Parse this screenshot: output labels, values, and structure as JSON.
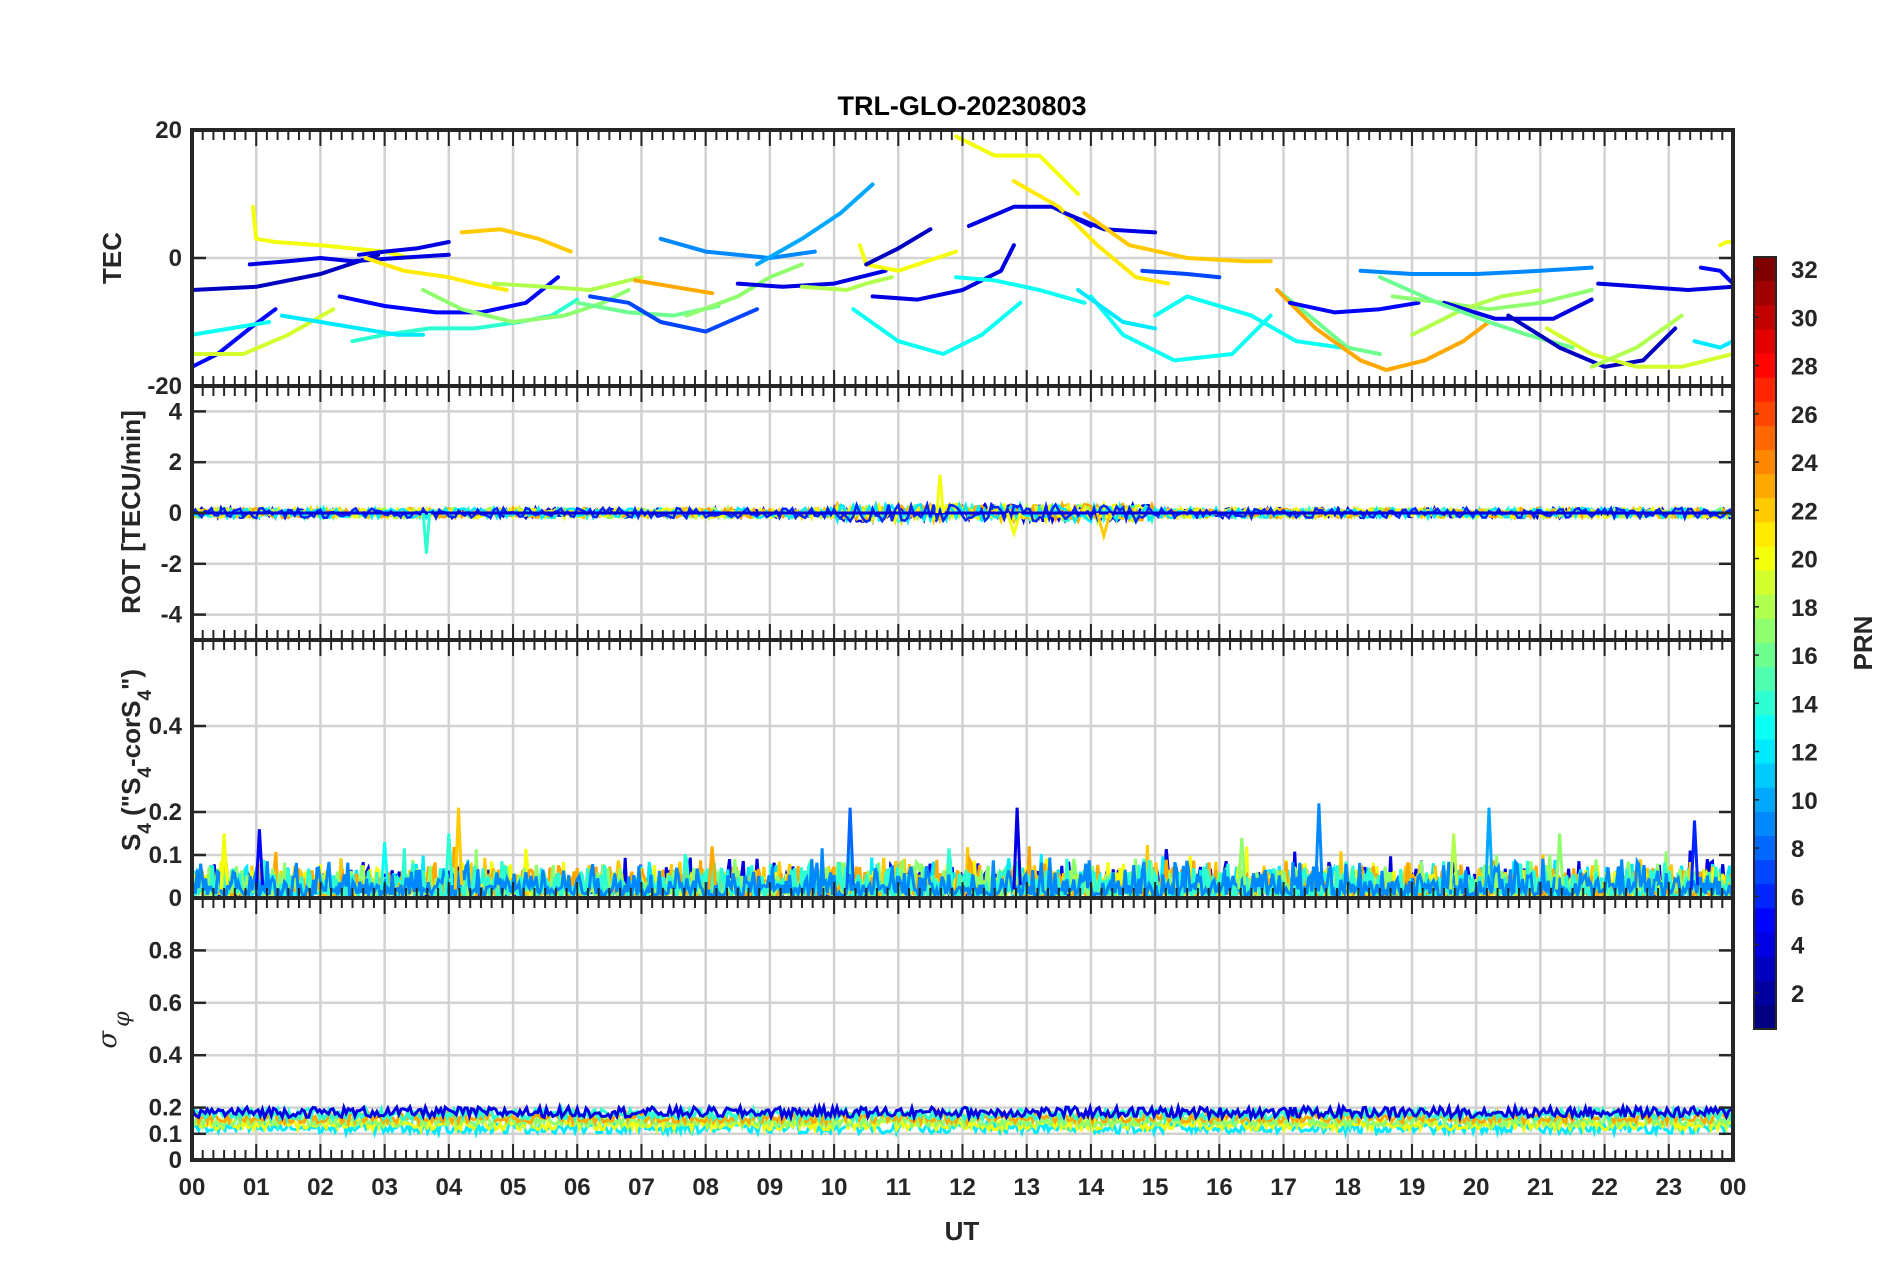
{
  "figure": {
    "title": "TRL-GLO-20230803",
    "xlabel": "UT"
  },
  "chart_data": [
    {
      "type": "line",
      "panel": "tec",
      "ylabel": "TEC",
      "ylim": [
        -20,
        20
      ],
      "yticks": [
        20,
        0,
        -20
      ],
      "xlim": [
        0,
        24
      ],
      "grid": true,
      "color_by": "PRN",
      "series": [
        {
          "prn": 5,
          "x": [
            0,
            0.4,
            0.9,
            1.3
          ],
          "y": [
            -17,
            -15,
            -11,
            -8
          ]
        },
        {
          "prn": 3,
          "x": [
            0,
            1,
            2,
            2.9
          ],
          "y": [
            -5,
            -4.5,
            -2.5,
            0.5
          ]
        },
        {
          "prn": 13,
          "x": [
            0,
            0.6,
            1.2
          ],
          "y": [
            -12,
            -11,
            -10
          ]
        },
        {
          "prn": 19,
          "x": [
            0,
            0.8,
            1.5,
            2.2
          ],
          "y": [
            -15,
            -15,
            -12,
            -8
          ]
        },
        {
          "prn": 20,
          "x": [
            0.95,
            1.0,
            1.3,
            2,
            3,
            3.4
          ],
          "y": [
            8,
            3,
            2.5,
            2,
            1,
            0
          ]
        },
        {
          "prn": 4,
          "x": [
            0.9,
            1.5,
            2,
            2.5,
            3.2,
            4
          ],
          "y": [
            -1,
            -0.5,
            0,
            -0.5,
            0,
            0.5
          ]
        },
        {
          "prn": 4,
          "x": [
            2.6,
            3,
            3.5,
            4
          ],
          "y": [
            0.5,
            1,
            1.5,
            2.5
          ]
        },
        {
          "prn": 5,
          "x": [
            2.3,
            3,
            3.8,
            4.5,
            5.2,
            5.7
          ],
          "y": [
            -6,
            -7.5,
            -8.5,
            -8.5,
            -7,
            -3
          ]
        },
        {
          "prn": 21,
          "x": [
            2.7,
            3.3,
            4,
            4.4,
            4.9
          ],
          "y": [
            0,
            -2,
            -3,
            -4,
            -5
          ]
        },
        {
          "prn": 22,
          "x": [
            4.2,
            4.8,
            5.4,
            5.9
          ],
          "y": [
            4,
            4.5,
            3,
            1
          ]
        },
        {
          "prn": 14,
          "x": [
            2.5,
            3,
            3.7,
            4.4,
            5.1,
            5.6,
            6
          ],
          "y": [
            -13,
            -12,
            -11,
            -11,
            -10,
            -9,
            -6.5
          ]
        },
        {
          "prn": 12,
          "x": [
            1.4,
            2,
            2.6,
            3.2,
            3.6
          ],
          "y": [
            -9,
            -10,
            -11,
            -12,
            -12
          ]
        },
        {
          "prn": 17,
          "x": [
            3.6,
            4.2,
            5,
            5.8,
            6.4,
            6.8
          ],
          "y": [
            -5,
            -8,
            -10,
            -9,
            -7,
            -5
          ]
        },
        {
          "prn": 18,
          "x": [
            4.7,
            5.5,
            6.2,
            7
          ],
          "y": [
            -4,
            -4.5,
            -5,
            -3
          ]
        },
        {
          "prn": 16,
          "x": [
            6,
            6.8,
            7.5,
            8.2
          ],
          "y": [
            -7,
            -8.5,
            -9,
            -7.5
          ]
        },
        {
          "prn": 7,
          "x": [
            6.2,
            6.8,
            7.3,
            8,
            8.8
          ],
          "y": [
            -6,
            -7,
            -10,
            -11.5,
            -8
          ]
        },
        {
          "prn": 23,
          "x": [
            6.9,
            7.5,
            8.1
          ],
          "y": [
            -3.5,
            -4.5,
            -5.5
          ]
        },
        {
          "prn": 9,
          "x": [
            7.3,
            8,
            9,
            9.7
          ],
          "y": [
            3,
            1,
            0,
            1
          ]
        },
        {
          "prn": 17,
          "x": [
            7.7,
            8.5,
            9,
            9.5
          ],
          "y": [
            -9,
            -6,
            -3,
            -1
          ]
        },
        {
          "prn": 4,
          "x": [
            8.5,
            9.2,
            10,
            10.8
          ],
          "y": [
            -4,
            -4.5,
            -4,
            -2
          ]
        },
        {
          "prn": 10,
          "x": [
            8.8,
            9.5,
            10.1,
            10.6
          ],
          "y": [
            -1,
            3,
            7,
            11.5
          ]
        },
        {
          "prn": 18,
          "x": [
            9.5,
            10.2,
            10.5,
            10.9
          ],
          "y": [
            -4.5,
            -5,
            -4,
            -3
          ]
        },
        {
          "prn": 20,
          "x": [
            10.4,
            10.5,
            11,
            11.6,
            11.9
          ],
          "y": [
            2,
            -1,
            -2,
            0,
            1
          ]
        },
        {
          "prn": 3,
          "x": [
            10.5,
            11,
            11.5
          ],
          "y": [
            -1,
            1.5,
            4.5
          ]
        },
        {
          "prn": 4,
          "x": [
            10.6,
            11.3,
            12,
            12.6,
            12.8
          ],
          "y": [
            -6,
            -6.5,
            -5,
            -2,
            2
          ]
        },
        {
          "prn": 13,
          "x": [
            10.3,
            11,
            11.7,
            12.3,
            12.9
          ],
          "y": [
            -8,
            -13,
            -15,
            -12,
            -7
          ]
        },
        {
          "prn": 13,
          "x": [
            11.9,
            12.5,
            13.2,
            13.9
          ],
          "y": [
            -3,
            -3.5,
            -5,
            -7
          ]
        },
        {
          "prn": 20,
          "x": [
            11.9,
            12.5,
            13.2,
            13.8
          ],
          "y": [
            19,
            16,
            16,
            10
          ]
        },
        {
          "prn": 4,
          "x": [
            12.1,
            12.8,
            13.4,
            14
          ],
          "y": [
            5,
            8,
            8,
            5
          ]
        },
        {
          "prn": 21,
          "x": [
            12.8,
            13.5,
            14.1,
            14.7,
            15.2
          ],
          "y": [
            12,
            8,
            2,
            -3,
            -4
          ]
        },
        {
          "prn": 4,
          "x": [
            13.6,
            14.2,
            15
          ],
          "y": [
            7,
            4.5,
            4
          ]
        },
        {
          "prn": 22,
          "x": [
            13.9,
            14.6,
            15.5,
            16.4,
            16.8
          ],
          "y": [
            7,
            2,
            0,
            -0.5,
            -0.5
          ]
        },
        {
          "prn": 13,
          "x": [
            14,
            14.5,
            15.3,
            16.2,
            16.8
          ],
          "y": [
            -6,
            -12,
            -16,
            -15,
            -9
          ]
        },
        {
          "prn": 12,
          "x": [
            13.8,
            14.5,
            15
          ],
          "y": [
            -5,
            -10,
            -11
          ]
        },
        {
          "prn": 7,
          "x": [
            14.8,
            15.5,
            16
          ],
          "y": [
            -2,
            -2.5,
            -3
          ]
        },
        {
          "prn": 13,
          "x": [
            15,
            15.5,
            16.5,
            17.2,
            17.9
          ],
          "y": [
            -9,
            -6,
            -9,
            -13,
            -14
          ]
        },
        {
          "prn": 16,
          "x": [
            16.9,
            17.4,
            18,
            18.5
          ],
          "y": [
            -5,
            -9,
            -14,
            -15
          ]
        },
        {
          "prn": 23,
          "x": [
            16.9,
            17.5,
            18.2,
            18.6,
            19.2,
            19.8,
            20.2
          ],
          "y": [
            -5,
            -11,
            -16,
            -17.5,
            -16,
            -13,
            -10
          ]
        },
        {
          "prn": 5,
          "x": [
            17.1,
            17.8,
            18.5,
            19.1
          ],
          "y": [
            -7,
            -8.5,
            -8,
            -7
          ]
        },
        {
          "prn": 9,
          "x": [
            18.2,
            19,
            20,
            21,
            21.8
          ],
          "y": [
            -2,
            -2.5,
            -2.5,
            -2,
            -1.5
          ]
        },
        {
          "prn": 17,
          "x": [
            18.7,
            19.5,
            20.2,
            21,
            21.8
          ],
          "y": [
            -6,
            -7,
            -8,
            -7,
            -5
          ]
        },
        {
          "prn": 18,
          "x": [
            19,
            19.8,
            20.4,
            21
          ],
          "y": [
            -12,
            -8,
            -6,
            -5
          ]
        },
        {
          "prn": 4,
          "x": [
            19.5,
            20.3,
            21.2,
            21.8
          ],
          "y": [
            -7,
            -9.5,
            -9.5,
            -6.5
          ]
        },
        {
          "prn": 16,
          "x": [
            18.5,
            19.4,
            20.2,
            20.8,
            21.5
          ],
          "y": [
            -3,
            -7,
            -10,
            -12,
            -14
          ]
        },
        {
          "prn": 3,
          "x": [
            20.5,
            21.3,
            22,
            22.6,
            23.1
          ],
          "y": [
            -9,
            -14,
            -17,
            -16,
            -11
          ]
        },
        {
          "prn": 4,
          "x": [
            21.9,
            22.6,
            23.3,
            24
          ],
          "y": [
            -4,
            -4.5,
            -5,
            -4.5
          ]
        },
        {
          "prn": 19,
          "x": [
            21.1,
            21.8,
            22.5,
            23.2,
            24
          ],
          "y": [
            -11,
            -15,
            -17,
            -17,
            -15
          ]
        },
        {
          "prn": 18,
          "x": [
            21.8,
            22.5,
            23.2
          ],
          "y": [
            -17,
            -14,
            -9
          ]
        },
        {
          "prn": 20,
          "x": [
            23.8,
            23.9,
            24
          ],
          "y": [
            2,
            2.5,
            2.5
          ]
        },
        {
          "prn": 5,
          "x": [
            23.5,
            23.8,
            24
          ],
          "y": [
            -1.5,
            -2,
            -4
          ]
        },
        {
          "prn": 12,
          "x": [
            23.4,
            23.8,
            24
          ],
          "y": [
            -13,
            -14,
            -13
          ]
        }
      ]
    },
    {
      "type": "line",
      "panel": "rot",
      "ylabel": "ROT [TECU/min]",
      "ylim": [
        -5,
        5
      ],
      "yticks": [
        4,
        2,
        0,
        -2,
        -4
      ],
      "xlim": [
        0,
        24
      ],
      "grid": true,
      "color_by": "PRN",
      "series": [
        {
          "prn": 4,
          "x": [
            0,
            6,
            12,
            18,
            24
          ],
          "y": [
            0,
            0,
            0,
            0,
            0
          ]
        },
        {
          "prn": 14,
          "x": [
            3.6,
            3.65,
            3.7
          ],
          "y": [
            0,
            -1.6,
            0
          ]
        },
        {
          "prn": 20,
          "x": [
            11.6,
            11.65,
            11.7
          ],
          "y": [
            0,
            1.5,
            0
          ]
        },
        {
          "prn": 20,
          "x": [
            12.7,
            12.8,
            12.9
          ],
          "y": [
            0,
            -0.8,
            0
          ]
        },
        {
          "prn": 22,
          "x": [
            14.1,
            14.2,
            14.3
          ],
          "y": [
            0,
            -0.9,
            0
          ]
        }
      ]
    },
    {
      "type": "line",
      "panel": "s4",
      "ylabel": "S4 (\"S4-corS4\")",
      "ylim": [
        0,
        0.6
      ],
      "yticks": [
        0.4,
        0.2,
        0.1,
        0
      ],
      "xlim": [
        0,
        24
      ],
      "grid": true,
      "color_by": "PRN",
      "peaks": [
        {
          "x": 0.5,
          "y": 0.15
        },
        {
          "x": 1.05,
          "y": 0.16
        },
        {
          "x": 3.0,
          "y": 0.13
        },
        {
          "x": 4.0,
          "y": 0.15
        },
        {
          "x": 4.15,
          "y": 0.21
        },
        {
          "x": 8.1,
          "y": 0.12
        },
        {
          "x": 10.25,
          "y": 0.21
        },
        {
          "x": 12.85,
          "y": 0.21
        },
        {
          "x": 16.35,
          "y": 0.14
        },
        {
          "x": 17.55,
          "y": 0.22
        },
        {
          "x": 19.65,
          "y": 0.15
        },
        {
          "x": 20.2,
          "y": 0.21
        },
        {
          "x": 21.3,
          "y": 0.15
        },
        {
          "x": 23.4,
          "y": 0.18
        }
      ]
    },
    {
      "type": "line",
      "panel": "sigma_phi",
      "ylabel": "σφ",
      "ylim": [
        0,
        1
      ],
      "yticks": [
        0.8,
        0.6,
        0.4,
        0.2,
        0.1,
        0
      ],
      "xlim": [
        0,
        24
      ],
      "grid": true,
      "color_by": "PRN",
      "levels": {
        "low": 0.1,
        "high": 0.21
      }
    }
  ],
  "x_ticks": [
    "00",
    "01",
    "02",
    "03",
    "04",
    "05",
    "06",
    "07",
    "08",
    "09",
    "10",
    "11",
    "12",
    "13",
    "14",
    "15",
    "16",
    "17",
    "18",
    "19",
    "20",
    "21",
    "22",
    "23",
    "00"
  ],
  "colorbar": {
    "label": "PRN",
    "range": [
      1,
      32
    ],
    "ticks": [
      "32",
      "30",
      "28",
      "26",
      "24",
      "22",
      "20",
      "18",
      "16",
      "14",
      "12",
      "10",
      "8",
      "6",
      "4",
      "2"
    ],
    "tick_values": [
      32,
      30,
      28,
      26,
      24,
      22,
      20,
      18,
      16,
      14,
      12,
      10,
      8,
      6,
      4,
      2
    ],
    "colormap": "jet"
  },
  "ylabel_parts": {
    "s4_main": "S",
    "s4_sub": "4",
    "s4_open": " (\"S",
    "s4_mid": "-corS",
    "s4_close": "\")",
    "sigma": "σ",
    "phi": "φ"
  }
}
